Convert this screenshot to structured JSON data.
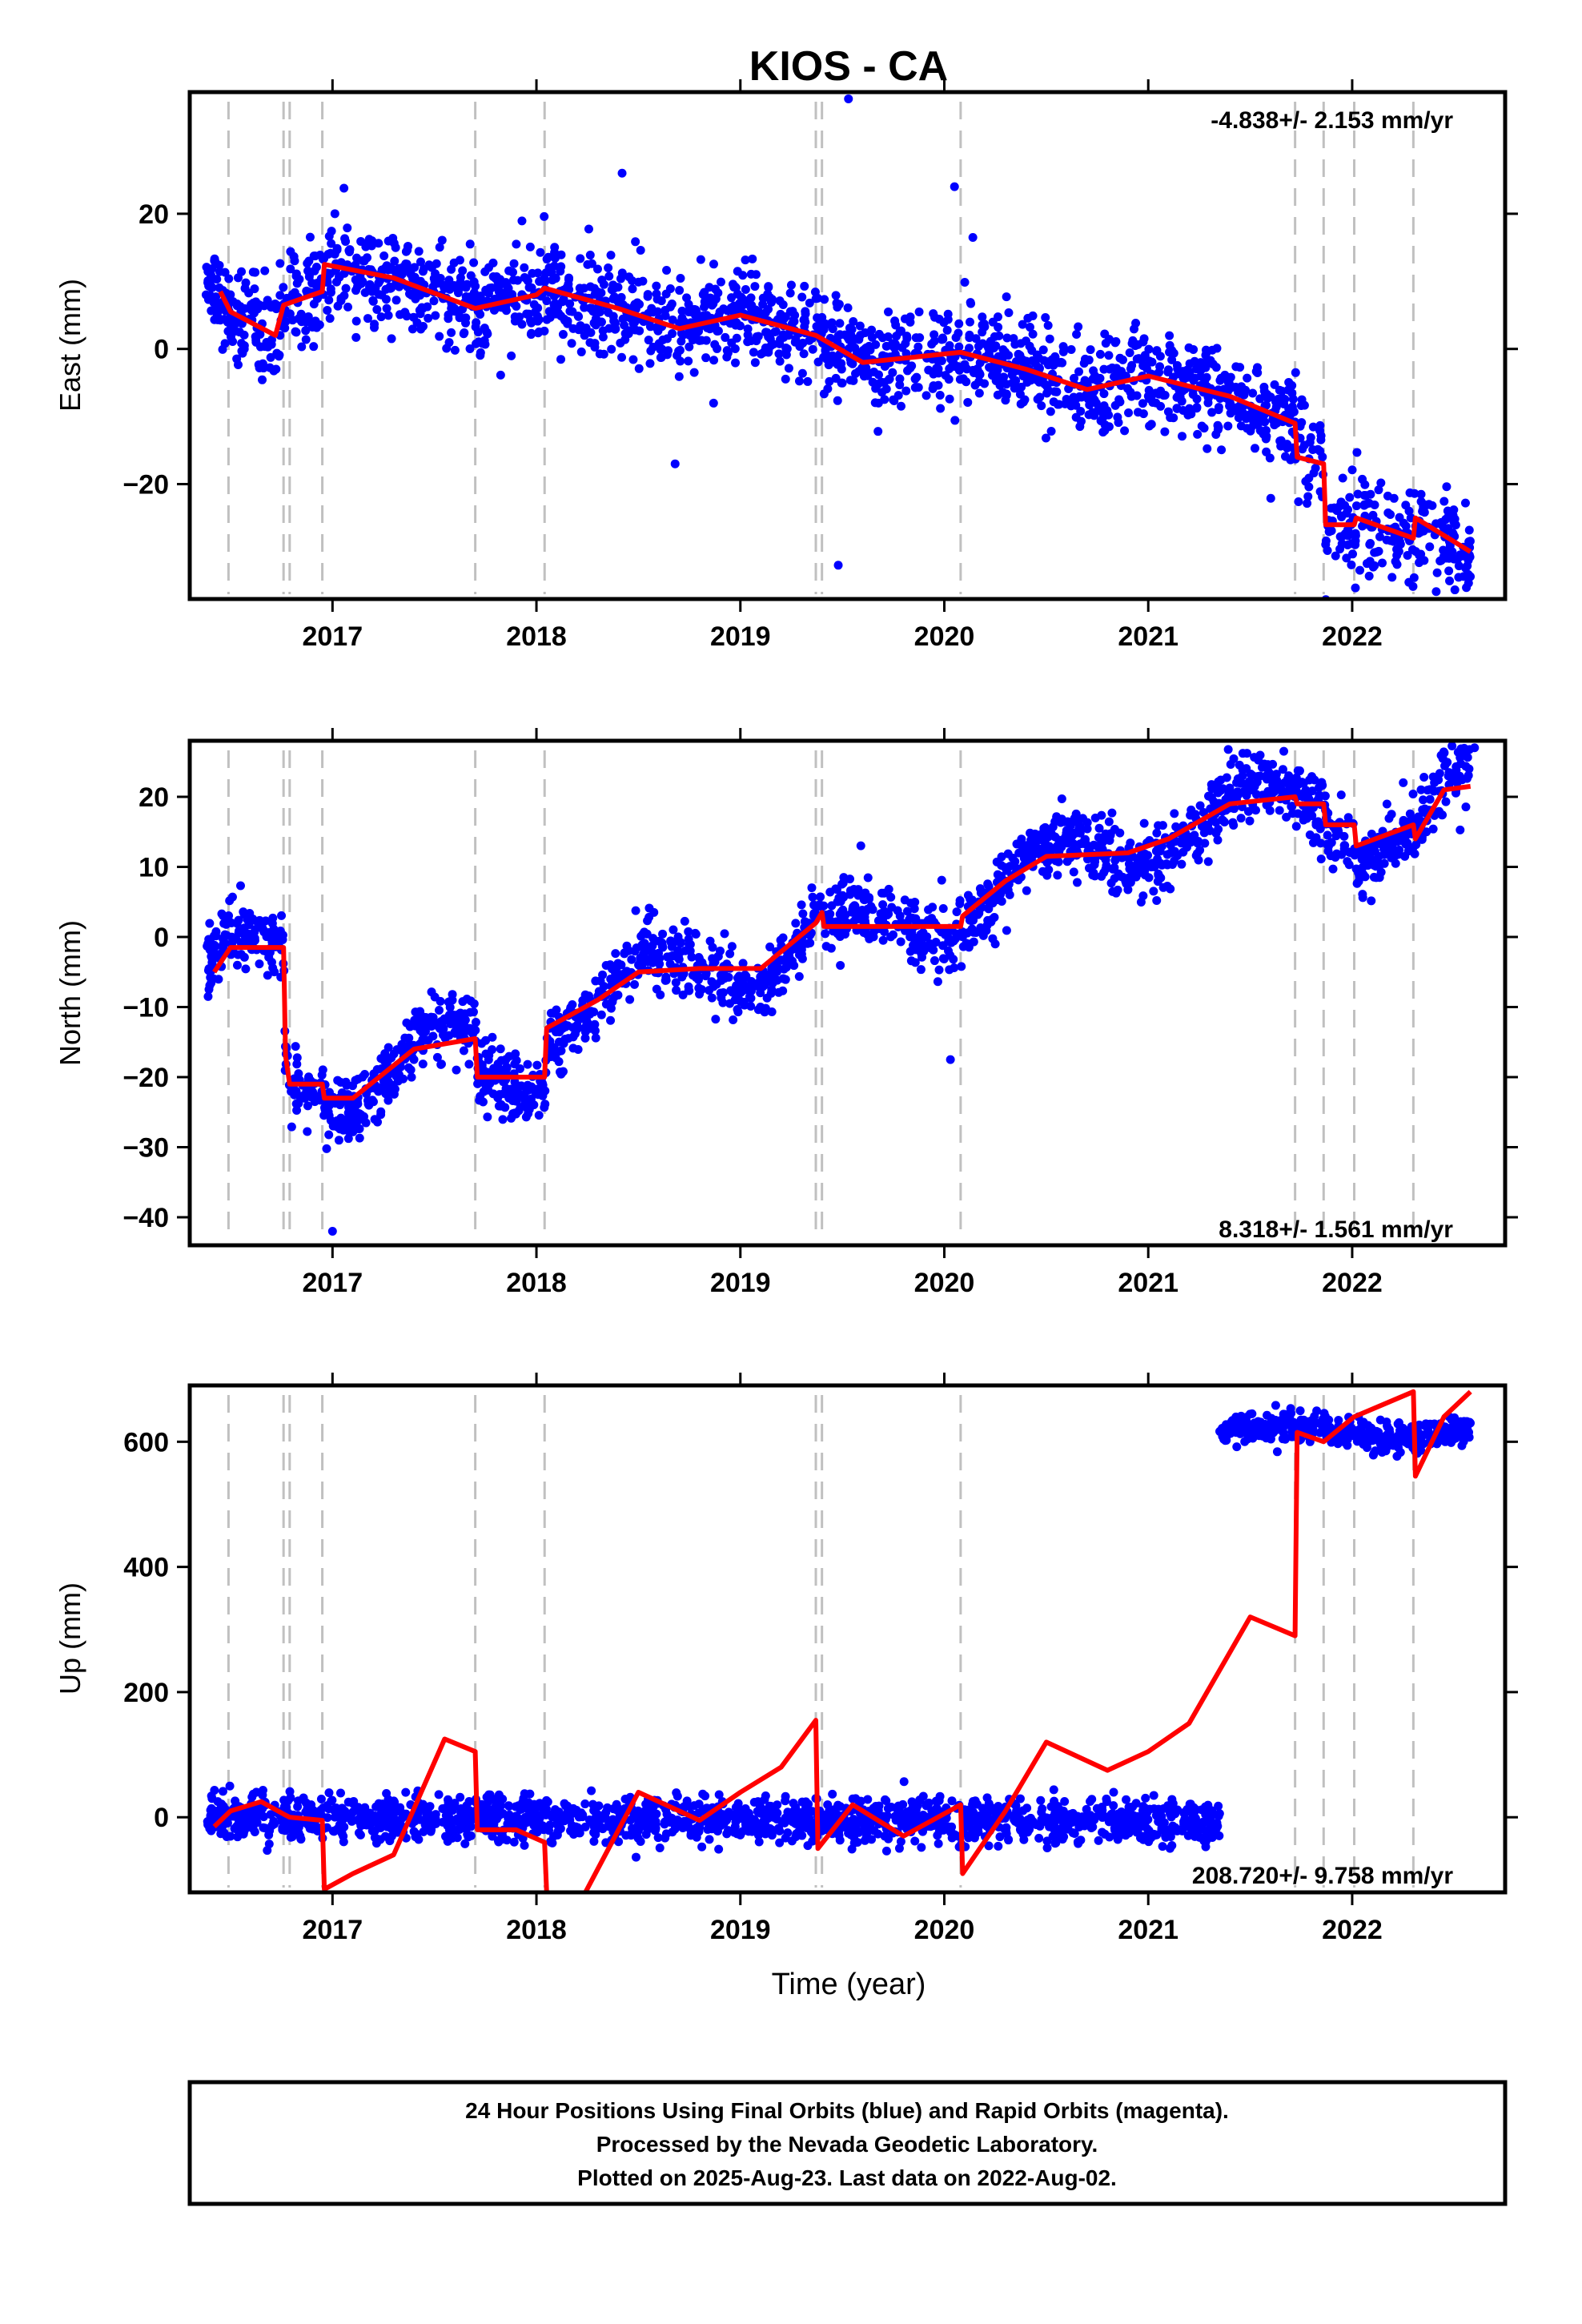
{
  "title": "KIOS - CA",
  "xlabel": "Time (year)",
  "colors": {
    "final_orbits": "#0000ff",
    "model": "#ff0000",
    "event_lines": "#c0c0c0",
    "frame": "#000000"
  },
  "footer": {
    "line1": "24 Hour Positions Using Final Orbits (blue) and Rapid Orbits (magenta).",
    "line2": "Processed by the Nevada Geodetic Laboratory.",
    "line3": "Plotted on 2025-Aug-23. Last data on 2022-Aug-02."
  },
  "chart_data": [
    {
      "type": "scatter",
      "id": "east",
      "ylabel": "East (mm)",
      "rate_label": "-4.838+/- 2.153 mm/yr",
      "xlim": [
        2016.3,
        2022.75
      ],
      "ylim": [
        -37,
        38
      ],
      "x_ticks": [
        2017,
        2018,
        2019,
        2020,
        2021,
        2022
      ],
      "y_ticks": [
        -20,
        0,
        20
      ],
      "y_tick_labels": [
        "−20",
        "0",
        "20"
      ],
      "event_lines": [
        2016.49,
        2016.76,
        2016.79,
        2016.95,
        2017.7,
        2018.04,
        2019.37,
        2019.4,
        2020.08,
        2021.72,
        2021.86,
        2022.01,
        2022.3
      ],
      "trend_points": [
        [
          2016.45,
          8.5
        ],
        [
          2016.5,
          5.5
        ],
        [
          2016.72,
          2
        ],
        [
          2016.76,
          6.5
        ],
        [
          2016.95,
          8.5
        ],
        [
          2016.96,
          12.5
        ],
        [
          2017.3,
          10.5
        ],
        [
          2017.7,
          6
        ],
        [
          2018.0,
          8
        ],
        [
          2018.04,
          9
        ],
        [
          2018.4,
          6
        ],
        [
          2018.7,
          3
        ],
        [
          2019.0,
          5
        ],
        [
          2019.37,
          2
        ],
        [
          2019.4,
          1.5
        ],
        [
          2019.6,
          -2
        ],
        [
          2020.08,
          -0.5
        ],
        [
          2020.4,
          -3
        ],
        [
          2020.7,
          -6
        ],
        [
          2021.0,
          -4
        ],
        [
          2021.4,
          -7
        ],
        [
          2021.72,
          -11
        ],
        [
          2021.73,
          -16
        ],
        [
          2021.86,
          -17
        ],
        [
          2021.87,
          -26
        ],
        [
          2022.01,
          -26
        ],
        [
          2022.02,
          -25
        ],
        [
          2022.3,
          -28
        ],
        [
          2022.31,
          -25
        ],
        [
          2022.58,
          -30
        ]
      ],
      "outliers": [
        [
          2019.53,
          37
        ],
        [
          2019.48,
          -32
        ],
        [
          2020.05,
          24
        ],
        [
          2020.14,
          16.5
        ],
        [
          2018.42,
          26
        ],
        [
          2018.68,
          -17
        ]
      ]
    },
    {
      "type": "scatter",
      "id": "north",
      "ylabel": "North (mm)",
      "rate_label": "8.318+/- 1.561 mm/yr",
      "xlim": [
        2016.3,
        2022.75
      ],
      "ylim": [
        -44,
        28
      ],
      "x_ticks": [
        2017,
        2018,
        2019,
        2020,
        2021,
        2022
      ],
      "y_ticks": [
        -40,
        -30,
        -20,
        -10,
        0,
        10,
        20
      ],
      "y_tick_labels": [
        "−40",
        "−30",
        "−20",
        "−10",
        "0",
        "10",
        "20"
      ],
      "event_lines": [
        2016.49,
        2016.76,
        2016.79,
        2016.95,
        2017.7,
        2018.04,
        2019.37,
        2019.4,
        2020.08,
        2021.72,
        2021.86,
        2022.01,
        2022.3
      ],
      "trend_points": [
        [
          2016.42,
          -5
        ],
        [
          2016.5,
          -1.5
        ],
        [
          2016.76,
          -1.5
        ],
        [
          2016.77,
          -17
        ],
        [
          2016.79,
          -21
        ],
        [
          2016.95,
          -21
        ],
        [
          2016.96,
          -23
        ],
        [
          2017.1,
          -23
        ],
        [
          2017.4,
          -16
        ],
        [
          2017.7,
          -14.5
        ],
        [
          2017.71,
          -20
        ],
        [
          2018.04,
          -20
        ],
        [
          2018.05,
          -13
        ],
        [
          2018.3,
          -9
        ],
        [
          2018.5,
          -5
        ],
        [
          2018.8,
          -4.5
        ],
        [
          2019.1,
          -4.5
        ],
        [
          2019.37,
          2
        ],
        [
          2019.4,
          3.5
        ],
        [
          2019.41,
          1.5
        ],
        [
          2020.08,
          1.5
        ],
        [
          2020.09,
          3
        ],
        [
          2020.3,
          8
        ],
        [
          2020.5,
          11.5
        ],
        [
          2020.9,
          12
        ],
        [
          2021.1,
          14
        ],
        [
          2021.4,
          19
        ],
        [
          2021.72,
          20
        ],
        [
          2021.73,
          19
        ],
        [
          2021.86,
          19
        ],
        [
          2021.87,
          16
        ],
        [
          2022.01,
          16
        ],
        [
          2022.02,
          13
        ],
        [
          2022.3,
          16
        ],
        [
          2022.31,
          14
        ],
        [
          2022.45,
          21
        ],
        [
          2022.58,
          21.5
        ]
      ],
      "outliers": [
        [
          2017.0,
          -42
        ],
        [
          2020.03,
          -17.5
        ],
        [
          2022.6,
          27
        ]
      ]
    },
    {
      "type": "scatter",
      "id": "up",
      "ylabel": "Up (mm)",
      "rate_label": "208.720+/- 9.758 mm/yr",
      "xlim": [
        2016.3,
        2022.75
      ],
      "ylim": [
        -120,
        690
      ],
      "x_ticks": [
        2017,
        2018,
        2019,
        2020,
        2021,
        2022
      ],
      "y_ticks": [
        0,
        200,
        400,
        600
      ],
      "y_tick_labels": [
        "0",
        "200",
        "400",
        "600"
      ],
      "event_lines": [
        2016.49,
        2016.76,
        2016.79,
        2016.95,
        2017.7,
        2018.04,
        2019.37,
        2019.4,
        2020.08,
        2021.72,
        2021.86,
        2022.01,
        2022.3
      ],
      "trend_points": [
        [
          2016.42,
          -15
        ],
        [
          2016.5,
          10
        ],
        [
          2016.65,
          25
        ],
        [
          2016.76,
          5
        ],
        [
          2016.79,
          0
        ],
        [
          2016.95,
          -5
        ],
        [
          2016.96,
          -115
        ],
        [
          2017.1,
          -90
        ],
        [
          2017.3,
          -60
        ],
        [
          2017.55,
          125
        ],
        [
          2017.7,
          105
        ],
        [
          2017.71,
          -20
        ],
        [
          2017.9,
          -20
        ],
        [
          2018.04,
          -40
        ],
        [
          2018.05,
          -120
        ]
      ],
      "trend_points_2": [
        [
          2018.24,
          -120
        ],
        [
          2018.5,
          40
        ],
        [
          2018.8,
          -5
        ],
        [
          2019.0,
          40
        ],
        [
          2019.2,
          80
        ],
        [
          2019.37,
          155
        ],
        [
          2019.38,
          -50
        ],
        [
          2019.55,
          20
        ],
        [
          2019.8,
          -30
        ],
        [
          2020.08,
          20
        ],
        [
          2020.09,
          -90
        ],
        [
          2020.3,
          10
        ],
        [
          2020.5,
          120
        ],
        [
          2020.8,
          75
        ],
        [
          2021.0,
          105
        ],
        [
          2021.2,
          150
        ],
        [
          2021.5,
          320
        ],
        [
          2021.72,
          290
        ],
        [
          2021.73,
          615
        ],
        [
          2021.86,
          600
        ],
        [
          2022.01,
          640
        ],
        [
          2022.3,
          680
        ],
        [
          2022.31,
          545
        ],
        [
          2022.45,
          640
        ],
        [
          2022.58,
          680
        ]
      ],
      "outliers": []
    }
  ]
}
